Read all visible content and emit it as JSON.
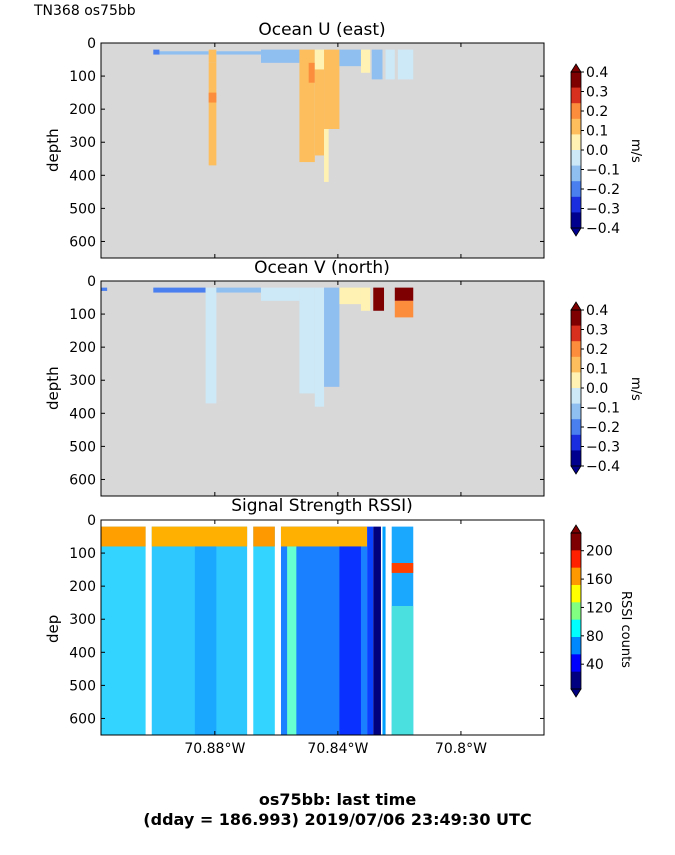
{
  "header": {
    "corner_label": "TN368 os75bb"
  },
  "footer": {
    "line1": "os75bb: last time",
    "line2": "(dday = 186.993) 2019/07/06 23:49:30 UTC"
  },
  "x_ticks": [
    {
      "value": -70.88,
      "label": "70.88°W"
    },
    {
      "value": -70.84,
      "label": "70.84°W"
    },
    {
      "value": -70.8,
      "label": "70.8°W"
    }
  ],
  "x_range": [
    -70.917,
    -70.773
  ],
  "y_range": [
    0,
    650
  ],
  "y_ticks": [
    0,
    100,
    200,
    300,
    400,
    500,
    600
  ],
  "colors": {
    "nodata": "#d8d8d8",
    "frame": "#000000"
  },
  "chart_data": [
    {
      "type": "heatmap",
      "title": "Ocean U (east)",
      "ylabel": "depth",
      "colorbar": {
        "label": "m/s",
        "ticks": [
          "0.4",
          "0.3",
          "0.2",
          "0.1",
          "0.0",
          "−0.1",
          "−0.2",
          "−0.3",
          "−0.4"
        ],
        "colors": [
          "#7f0000",
          "#d7301f",
          "#fc8d3c",
          "#fdbe5e",
          "#fff2b3",
          "#cde9f7",
          "#8fbff0",
          "#4a7fef",
          "#1a2ee0",
          "#00008f"
        ]
      },
      "segments": [
        {
          "x0": -70.9,
          "x1": -70.898,
          "top": 20,
          "bottom": 35,
          "color": "#4a7fef"
        },
        {
          "x0": -70.898,
          "x1": -70.882,
          "top": 25,
          "bottom": 35,
          "color": "#8fbff0"
        },
        {
          "x0": -70.882,
          "x1": -70.8795,
          "top": 20,
          "bottom": 60,
          "color": "#fdbe5e"
        },
        {
          "x0": -70.882,
          "x1": -70.8795,
          "top": 60,
          "bottom": 370,
          "color": "#fdbe5e"
        },
        {
          "x0": -70.882,
          "x1": -70.8795,
          "top": 150,
          "bottom": 180,
          "color": "#fc8d3c"
        },
        {
          "x0": -70.8795,
          "x1": -70.865,
          "top": 25,
          "bottom": 35,
          "color": "#8fbff0"
        },
        {
          "x0": -70.865,
          "x1": -70.8525,
          "top": 20,
          "bottom": 60,
          "color": "#8fbff0"
        },
        {
          "x0": -70.8525,
          "x1": -70.8475,
          "top": 20,
          "bottom": 360,
          "color": "#fdbe5e"
        },
        {
          "x0": -70.8495,
          "x1": -70.8475,
          "top": 60,
          "bottom": 120,
          "color": "#fc8d3c"
        },
        {
          "x0": -70.8475,
          "x1": -70.8435,
          "top": 20,
          "bottom": 80,
          "color": "#fff2b3"
        },
        {
          "x0": -70.8475,
          "x1": -70.8445,
          "top": 80,
          "bottom": 340,
          "color": "#fdbe5e"
        },
        {
          "x0": -70.8445,
          "x1": -70.8395,
          "top": 20,
          "bottom": 260,
          "color": "#fdbe5e"
        },
        {
          "x0": -70.8445,
          "x1": -70.843,
          "top": 260,
          "bottom": 420,
          "color": "#fff2b3"
        },
        {
          "x0": -70.8395,
          "x1": -70.8325,
          "top": 20,
          "bottom": 70,
          "color": "#8fbff0"
        },
        {
          "x0": -70.8325,
          "x1": -70.8295,
          "top": 20,
          "bottom": 90,
          "color": "#fff2b3"
        },
        {
          "x0": -70.829,
          "x1": -70.8255,
          "top": 20,
          "bottom": 110,
          "color": "#8fbff0"
        },
        {
          "x0": -70.8245,
          "x1": -70.8215,
          "top": 20,
          "bottom": 110,
          "color": "#cde9f7"
        },
        {
          "x0": -70.8205,
          "x1": -70.8155,
          "top": 20,
          "bottom": 110,
          "color": "#cde9f7"
        }
      ]
    },
    {
      "type": "heatmap",
      "title": "Ocean V (north)",
      "ylabel": "depth",
      "colorbar": {
        "label": "m/s",
        "ticks": [
          "0.4",
          "0.3",
          "0.2",
          "0.1",
          "0.0",
          "−0.1",
          "−0.2",
          "−0.3",
          "−0.4"
        ],
        "colors": [
          "#7f0000",
          "#d7301f",
          "#fc8d3c",
          "#fdbe5e",
          "#fff2b3",
          "#cde9f7",
          "#8fbff0",
          "#4a7fef",
          "#1a2ee0",
          "#00008f"
        ]
      },
      "segments": [
        {
          "x0": -70.917,
          "x1": -70.915,
          "top": 20,
          "bottom": 30,
          "color": "#4a7fef"
        },
        {
          "x0": -70.9,
          "x1": -70.883,
          "top": 20,
          "bottom": 35,
          "color": "#4a7fef"
        },
        {
          "x0": -70.883,
          "x1": -70.8795,
          "top": 20,
          "bottom": 370,
          "color": "#cde9f7"
        },
        {
          "x0": -70.8795,
          "x1": -70.865,
          "top": 20,
          "bottom": 35,
          "color": "#8fbff0"
        },
        {
          "x0": -70.865,
          "x1": -70.8525,
          "top": 20,
          "bottom": 60,
          "color": "#cde9f7"
        },
        {
          "x0": -70.8525,
          "x1": -70.8475,
          "top": 20,
          "bottom": 340,
          "color": "#cde9f7"
        },
        {
          "x0": -70.8475,
          "x1": -70.8445,
          "top": 20,
          "bottom": 380,
          "color": "#cde9f7"
        },
        {
          "x0": -70.8445,
          "x1": -70.8395,
          "top": 20,
          "bottom": 320,
          "color": "#8fbff0"
        },
        {
          "x0": -70.8395,
          "x1": -70.8325,
          "top": 20,
          "bottom": 70,
          "color": "#fff2b3"
        },
        {
          "x0": -70.8325,
          "x1": -70.8295,
          "top": 20,
          "bottom": 90,
          "color": "#fff2b3"
        },
        {
          "x0": -70.8285,
          "x1": -70.825,
          "top": 20,
          "bottom": 90,
          "color": "#7f0000"
        },
        {
          "x0": -70.8215,
          "x1": -70.8155,
          "top": 20,
          "bottom": 60,
          "color": "#7f0000"
        },
        {
          "x0": -70.8215,
          "x1": -70.8155,
          "top": 60,
          "bottom": 110,
          "color": "#fc8d3c"
        }
      ]
    },
    {
      "type": "heatmap",
      "title": "Signal Strength RSSI)",
      "ylabel": "dep",
      "colorbar": {
        "label": "RSSI counts",
        "ticks": [
          "200",
          "160",
          "120",
          "80",
          "40"
        ],
        "colors": [
          "#7f0000",
          "#ff2000",
          "#ff9900",
          "#ffff00",
          "#80ff80",
          "#00ffff",
          "#0088ff",
          "#0000ff",
          "#000080"
        ]
      },
      "segments": [
        {
          "x0": -70.917,
          "x1": -70.9025,
          "top": 20,
          "bottom": 650,
          "color": "#33d4ff"
        },
        {
          "x0": -70.917,
          "x1": -70.9025,
          "top": 20,
          "bottom": 80,
          "color": "#ffa000"
        },
        {
          "x0": -70.9005,
          "x1": -70.8695,
          "top": 20,
          "bottom": 650,
          "color": "#2ec8ff"
        },
        {
          "x0": -70.9005,
          "x1": -70.8695,
          "top": 20,
          "bottom": 80,
          "color": "#ffb000"
        },
        {
          "x0": -70.8865,
          "x1": -70.8795,
          "top": 80,
          "bottom": 650,
          "color": "#1aa8ff"
        },
        {
          "x0": -70.8675,
          "x1": -70.8605,
          "top": 20,
          "bottom": 650,
          "color": "#33d4ff"
        },
        {
          "x0": -70.8675,
          "x1": -70.8605,
          "top": 20,
          "bottom": 80,
          "color": "#ff9900"
        },
        {
          "x0": -70.8585,
          "x1": -70.8305,
          "top": 20,
          "bottom": 650,
          "color": "#1a80ff"
        },
        {
          "x0": -70.8585,
          "x1": -70.8305,
          "top": 20,
          "bottom": 80,
          "color": "#ffb000"
        },
        {
          "x0": -70.8565,
          "x1": -70.8535,
          "top": 80,
          "bottom": 650,
          "color": "#66ffd0"
        },
        {
          "x0": -70.8395,
          "x1": -70.8325,
          "top": 80,
          "bottom": 650,
          "color": "#0a30ff"
        },
        {
          "x0": -70.8305,
          "x1": -70.8285,
          "top": 20,
          "bottom": 650,
          "color": "#0a40ff"
        },
        {
          "x0": -70.8285,
          "x1": -70.826,
          "top": 20,
          "bottom": 650,
          "color": "#00007f"
        },
        {
          "x0": -70.8255,
          "x1": -70.8245,
          "top": 20,
          "bottom": 650,
          "color": "#00a0ff"
        },
        {
          "x0": -70.8225,
          "x1": -70.8155,
          "top": 20,
          "bottom": 650,
          "color": "#1aa8ff"
        },
        {
          "x0": -70.8225,
          "x1": -70.8155,
          "top": 130,
          "bottom": 160,
          "color": "#ff4000"
        },
        {
          "x0": -70.8225,
          "x1": -70.8155,
          "top": 260,
          "bottom": 650,
          "color": "#4ae0e0"
        }
      ]
    }
  ]
}
